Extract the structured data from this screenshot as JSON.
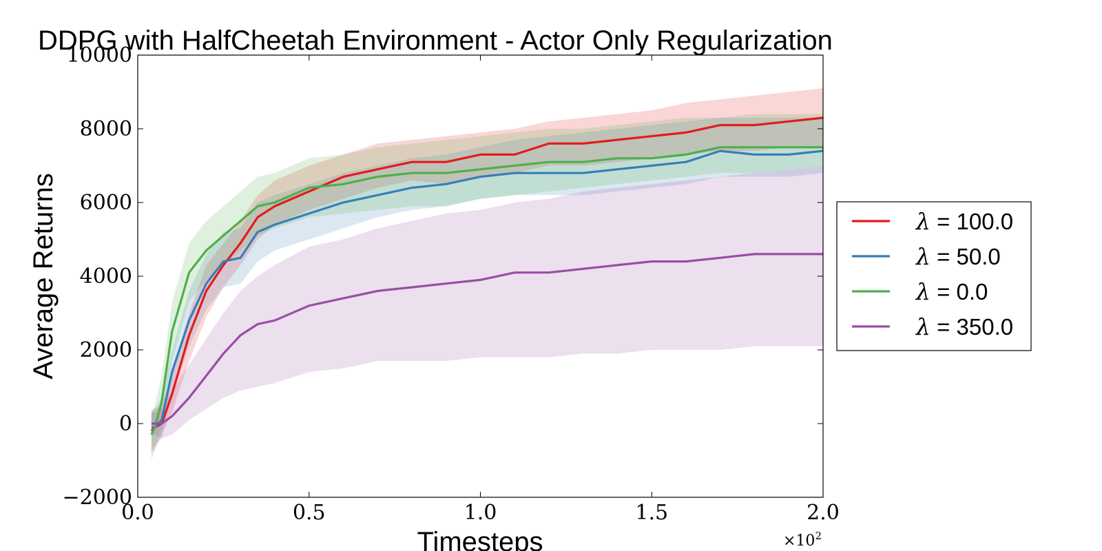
{
  "chart_data": {
    "type": "line",
    "title": "DDPG with HalfCheetah Environment - Actor Only Regularization",
    "xlabel": "Timesteps",
    "ylabel": "Average Returns",
    "x_multiplier_base": "×10",
    "x_multiplier_exp": "2",
    "xlim": [
      0.0,
      2.0
    ],
    "ylim": [
      -2000,
      10000
    ],
    "xticks": [
      0.0,
      0.5,
      1.0,
      1.5,
      2.0
    ],
    "xtick_labels": [
      "0.0",
      "0.5",
      "1.0",
      "1.5",
      "2.0"
    ],
    "yticks": [
      -2000,
      0,
      2000,
      4000,
      6000,
      8000,
      10000
    ],
    "ytick_labels": [
      "−2000",
      "0",
      "2000",
      "4000",
      "6000",
      "8000",
      "10000"
    ],
    "grid": false,
    "legend_position": "right",
    "series": [
      {
        "label_symbol": "λ",
        "label_text": " = 100.0",
        "color": "#e41a1c",
        "x": [
          0.04,
          0.05,
          0.07,
          0.1,
          0.15,
          0.2,
          0.25,
          0.3,
          0.35,
          0.4,
          0.5,
          0.6,
          0.7,
          0.8,
          0.9,
          1.0,
          1.1,
          1.2,
          1.3,
          1.4,
          1.5,
          1.6,
          1.7,
          1.8,
          1.9,
          2.0
        ],
        "y": [
          -200,
          -100,
          0,
          800,
          2400,
          3600,
          4300,
          4900,
          5600,
          5900,
          6300,
          6700,
          6900,
          7100,
          7100,
          7300,
          7300,
          7600,
          7600,
          7700,
          7800,
          7900,
          8100,
          8100,
          8200,
          8300
        ],
        "lower": [
          -800,
          -700,
          -300,
          300,
          1700,
          2900,
          3700,
          4300,
          5000,
          5400,
          5800,
          6100,
          6400,
          6600,
          6500,
          6700,
          6800,
          7000,
          7000,
          7100,
          7200,
          7300,
          7400,
          7400,
          7500,
          7500
        ],
        "upper": [
          300,
          400,
          500,
          1300,
          3000,
          4300,
          4900,
          5500,
          6200,
          6600,
          7000,
          7300,
          7600,
          7700,
          7800,
          7900,
          8000,
          8200,
          8300,
          8400,
          8500,
          8700,
          8800,
          8900,
          9000,
          9100
        ]
      },
      {
        "label_symbol": "λ",
        "label_text": " = 50.0",
        "color": "#377eb8",
        "x": [
          0.04,
          0.05,
          0.07,
          0.1,
          0.15,
          0.2,
          0.25,
          0.3,
          0.35,
          0.4,
          0.5,
          0.6,
          0.7,
          0.8,
          0.9,
          1.0,
          1.1,
          1.2,
          1.3,
          1.4,
          1.5,
          1.6,
          1.7,
          1.8,
          1.9,
          2.0
        ],
        "y": [
          -100,
          -100,
          100,
          1400,
          2800,
          3800,
          4400,
          4500,
          5200,
          5400,
          5700,
          6000,
          6200,
          6400,
          6500,
          6700,
          6800,
          6800,
          6800,
          6900,
          7000,
          7100,
          7400,
          7300,
          7300,
          7400
        ],
        "lower": [
          -700,
          -600,
          -400,
          800,
          2100,
          3100,
          3700,
          3800,
          4400,
          4700,
          5000,
          5300,
          5600,
          5800,
          5900,
          6100,
          6200,
          6200,
          6200,
          6300,
          6400,
          6500,
          6700,
          6700,
          6700,
          6800
        ],
        "upper": [
          400,
          400,
          700,
          2000,
          3600,
          4600,
          5200,
          5300,
          6000,
          6200,
          6500,
          6800,
          7000,
          7200,
          7300,
          7500,
          7700,
          7800,
          7900,
          8000,
          8100,
          8200,
          8300,
          8300,
          8300,
          8300
        ]
      },
      {
        "label_symbol": "λ",
        "label_text": " = 0.0",
        "color": "#4daf4a",
        "x": [
          0.04,
          0.05,
          0.07,
          0.1,
          0.15,
          0.2,
          0.25,
          0.3,
          0.35,
          0.4,
          0.5,
          0.6,
          0.7,
          0.8,
          0.9,
          1.0,
          1.1,
          1.2,
          1.3,
          1.4,
          1.5,
          1.6,
          1.7,
          1.8,
          1.9,
          2.0
        ],
        "y": [
          -300,
          -100,
          600,
          2500,
          4100,
          4700,
          5100,
          5500,
          5900,
          6000,
          6400,
          6500,
          6700,
          6800,
          6800,
          6900,
          7000,
          7100,
          7100,
          7200,
          7200,
          7300,
          7500,
          7500,
          7500,
          7500
        ],
        "lower": [
          -1000,
          -700,
          -100,
          1700,
          3300,
          3900,
          4300,
          4700,
          5100,
          5300,
          5600,
          5700,
          5800,
          5900,
          5900,
          6100,
          6200,
          6300,
          6400,
          6500,
          6600,
          6700,
          6800,
          6800,
          6900,
          7000
        ],
        "upper": [
          300,
          500,
          1300,
          3300,
          4900,
          5500,
          5900,
          6300,
          6700,
          6800,
          7200,
          7300,
          7500,
          7600,
          7700,
          7800,
          7900,
          8000,
          8000,
          8100,
          8200,
          8300,
          8300,
          8400,
          8400,
          8400
        ]
      },
      {
        "label_symbol": "λ",
        "label_text": " = 350.0",
        "color": "#984ea3",
        "x": [
          0.04,
          0.05,
          0.07,
          0.1,
          0.15,
          0.2,
          0.25,
          0.3,
          0.35,
          0.4,
          0.5,
          0.6,
          0.7,
          0.8,
          0.9,
          1.0,
          1.1,
          1.2,
          1.3,
          1.4,
          1.5,
          1.6,
          1.7,
          1.8,
          1.9,
          2.0
        ],
        "y": [
          0,
          0,
          0,
          200,
          700,
          1300,
          1900,
          2400,
          2700,
          2800,
          3200,
          3400,
          3600,
          3700,
          3800,
          3900,
          4100,
          4100,
          4200,
          4300,
          4400,
          4400,
          4500,
          4600,
          4600,
          4600
        ],
        "lower": [
          -300,
          -300,
          -400,
          -300,
          100,
          400,
          700,
          900,
          1000,
          1100,
          1400,
          1500,
          1700,
          1700,
          1700,
          1800,
          1800,
          1800,
          1900,
          1900,
          2000,
          2000,
          2000,
          2100,
          2100,
          2100
        ],
        "upper": [
          300,
          300,
          400,
          900,
          1600,
          2300,
          3000,
          3600,
          4000,
          4300,
          4800,
          5000,
          5300,
          5500,
          5700,
          5800,
          6000,
          6100,
          6300,
          6400,
          6500,
          6600,
          6700,
          6800,
          6900,
          7000
        ]
      }
    ]
  }
}
